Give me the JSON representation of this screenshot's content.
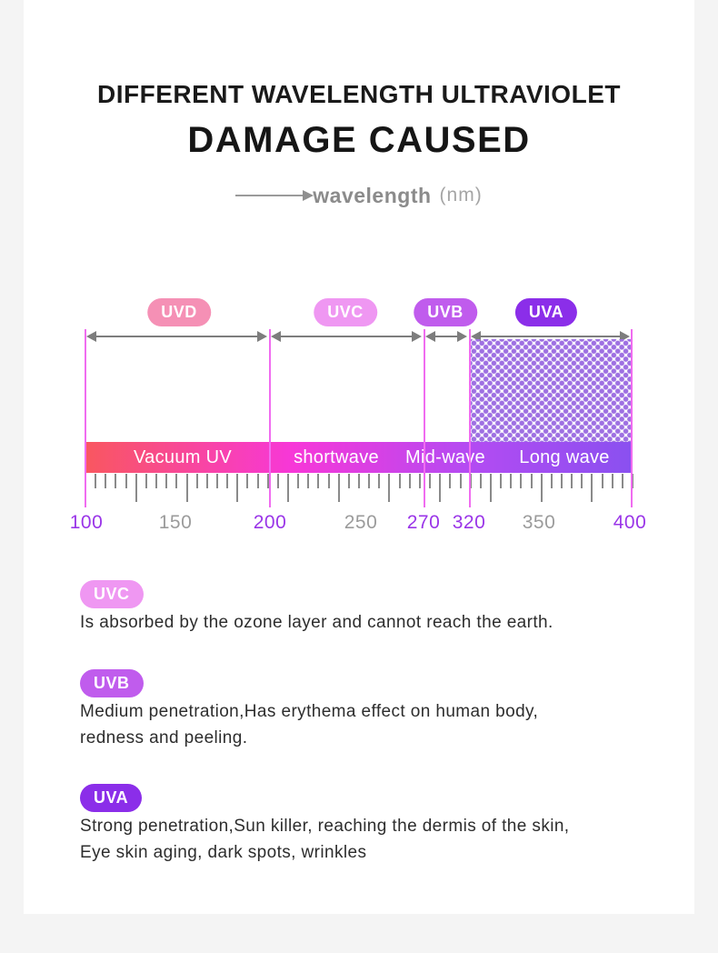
{
  "page": {
    "background_color": "#f4f4f4",
    "card_color": "#ffffff"
  },
  "header": {
    "title_line1": "DIFFERENT WAVELENGTH ULTRAVIOLET",
    "title_line2": "DAMAGE CAUSED",
    "axis_caption": "wavelength",
    "axis_unit": "(nm)"
  },
  "scale": {
    "bands": [
      {
        "name": "UVD",
        "badge_color": "#f590b5",
        "zone_label": "Vacuum UV",
        "from_nm": 100,
        "to_nm": 200
      },
      {
        "name": "UVC",
        "badge_color": "#ef97f2",
        "zone_label": "shortwave",
        "from_nm": 200,
        "to_nm": 270
      },
      {
        "name": "UVB",
        "badge_color": "#c05ced",
        "zone_label": "Mid-wave",
        "from_nm": 270,
        "to_nm": 320
      },
      {
        "name": "UVA",
        "badge_color": "#8b2ee9",
        "zone_label": "Long wave",
        "from_nm": 320,
        "to_nm": 400
      }
    ],
    "axis_values": [
      {
        "value": "100",
        "emphasized": true
      },
      {
        "value": "150",
        "emphasized": false
      },
      {
        "value": "200",
        "emphasized": true
      },
      {
        "value": "250",
        "emphasized": false
      },
      {
        "value": "270",
        "emphasized": true
      },
      {
        "value": "320",
        "emphasized": true
      },
      {
        "value": "350",
        "emphasized": false
      },
      {
        "value": "400",
        "emphasized": true
      }
    ],
    "emphasis_color": "#9a35e8",
    "muted_color": "#9b9b9b",
    "gradient_colors": [
      "#f9575f",
      "#f737d8",
      "#b44bf2",
      "#8a50f0"
    ],
    "marker_line_color": "#f06cf0",
    "dot_pattern_color": "#9e70e2"
  },
  "sections": [
    {
      "name": "UVC",
      "badge_color": "#ef97f2",
      "line1": "Is absorbed by the ozone layer and cannot reach the earth.",
      "line2": ""
    },
    {
      "name": "UVB",
      "badge_color": "#c05ced",
      "line1": "Medium penetration,Has erythema effect on human body,",
      "line2": "redness and peeling."
    },
    {
      "name": "UVA",
      "badge_color": "#8b2ee9",
      "line1": "Strong penetration,Sun killer, reaching the dermis of the skin,",
      "line2": "Eye skin aging, dark spots, wrinkles"
    }
  ]
}
